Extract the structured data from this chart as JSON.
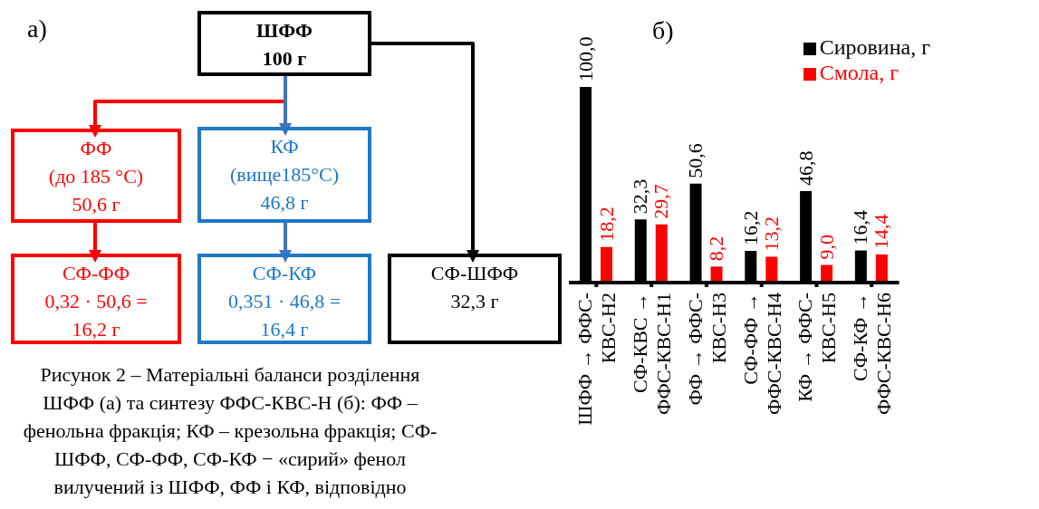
{
  "chart_data": [
    {
      "type": "other",
      "title": "а)",
      "annotations": [
        "ШФФ\n100 г",
        "ФФ\n(до 185 °C)\n50,6 г",
        "КФ\n(вище185°C)\n46,8 г",
        "СФ-ФФ\n0,32 · 50,6 =\n16,2 г",
        "СФ-КФ\n0,351 · 46,8 =\n16,4 г",
        "СФ-ШФФ\n32,3 г",
        "Рисунок 2 – Матеріальні баланси розділення ШФФ (а) та синтезу ФФС-КВС-Н (б): ФФ – фенольна фракція; КФ – крезольна фракція; СФ-ШФФ, СФ-ФФ, СФ-КФ − «сирий» фенол вилучений із ШФФ, ФФ і КФ, відповідно"
      ]
    },
    {
      "type": "bar",
      "title": "б)",
      "categories": [
        "ШФФ → ФФС-КВС-Н2",
        "СФ-КВС → ФФС-КВС-Н1",
        "ФФ → ФФС-КВС-Н3",
        "СФ-ФФ → ФФС-КВС-Н4",
        "КФ → ФФС-КВС-Н5",
        "СФ-КФ → ФФС-КВС-Н6"
      ],
      "series": [
        {
          "name": "Сировина, г",
          "color": "#000000",
          "values": [
            100.0,
            32.3,
            50.6,
            16.2,
            46.8,
            16.4
          ],
          "value_labels": [
            "100,0",
            "32,3",
            "50,6",
            "16,2",
            "46,8",
            "16,4"
          ]
        },
        {
          "name": "Смола, г",
          "color": "#ff0000",
          "values": [
            18.2,
            29.7,
            8.2,
            13.2,
            9.0,
            14.4
          ],
          "value_labels": [
            "18,2",
            "29,7",
            "8,2",
            "13,2",
            "9,0",
            "14,4"
          ]
        }
      ],
      "legend": "top right",
      "tick_labels": "x",
      "grid": false
    }
  ]
}
